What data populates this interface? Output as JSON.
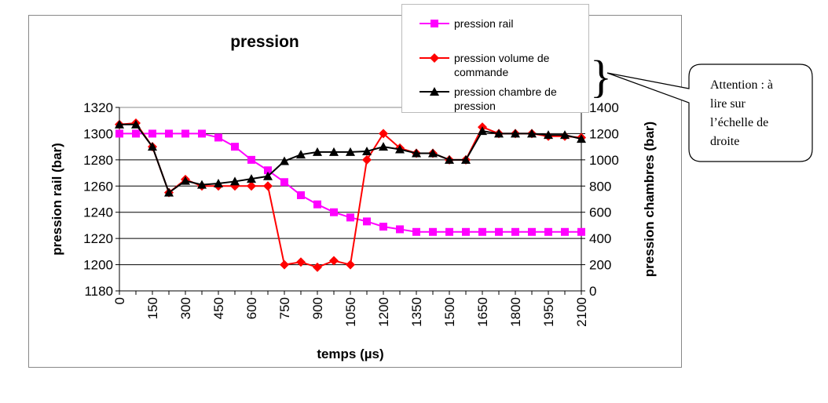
{
  "chart_data": {
    "type": "line",
    "title": "pression",
    "xlabel": "temps (µs)",
    "ylabel_left": "pression rail (bar)",
    "ylabel_right": "pression chambres (bar)",
    "x": [
      0,
      75,
      150,
      225,
      300,
      375,
      450,
      525,
      600,
      675,
      750,
      825,
      900,
      975,
      1050,
      1125,
      1200,
      1275,
      1350,
      1425,
      1500,
      1575,
      1650,
      1725,
      1800,
      1875,
      1950,
      2025,
      2100
    ],
    "xticks": [
      "0",
      "150",
      "300",
      "450",
      "600",
      "750",
      "900",
      "1050",
      "1200",
      "1350",
      "1500",
      "1650",
      "1800",
      "1950",
      "2100"
    ],
    "ylim_left": [
      1180,
      1320
    ],
    "ylim_right": [
      0,
      1400
    ],
    "yticks_left": [
      "1180",
      "1200",
      "1220",
      "1240",
      "1260",
      "1280",
      "1300",
      "1320"
    ],
    "yticks_right": [
      "0",
      "200",
      "400",
      "600",
      "800",
      "1000",
      "1200",
      "1400"
    ],
    "grid": "horizontal",
    "legend_position": "top-right",
    "series": [
      {
        "name": "pression rail",
        "axis": "left",
        "color": "#ff00ff",
        "marker": "square",
        "values": [
          1300,
          1300,
          1300,
          1300,
          1300,
          1300,
          1297,
          1290,
          1280,
          1272,
          1263,
          1253,
          1246,
          1240,
          1236,
          1233,
          1229,
          1227,
          1225,
          1225,
          1225,
          1225,
          1225,
          1225,
          1225,
          1225,
          1225,
          1225,
          1225
        ]
      },
      {
        "name": "pression volume de commande",
        "axis": "right",
        "color": "#ff0000",
        "marker": "diamond",
        "values": [
          1270,
          1280,
          1100,
          750,
          850,
          800,
          800,
          800,
          800,
          800,
          200,
          220,
          180,
          230,
          200,
          1000,
          1200,
          1090,
          1050,
          1050,
          1000,
          1000,
          1250,
          1200,
          1200,
          1200,
          1180,
          1180,
          1170
        ]
      },
      {
        "name": "pression chambre de pression",
        "axis": "right",
        "color": "#000000",
        "marker": "triangle",
        "values": [
          1270,
          1270,
          1100,
          750,
          840,
          810,
          820,
          835,
          855,
          875,
          990,
          1040,
          1060,
          1060,
          1060,
          1065,
          1100,
          1080,
          1050,
          1050,
          1000,
          1000,
          1220,
          1200,
          1200,
          1200,
          1190,
          1190,
          1160
        ]
      }
    ],
    "legend_items": [
      [
        "pression rail"
      ],
      [
        "pression volume de",
        "commande"
      ],
      [
        "pression chambre de",
        "pression"
      ]
    ]
  },
  "annotation": {
    "brace": "}",
    "lines": [
      "Attention : à",
      "lire sur",
      "l’échelle de",
      "droite"
    ]
  }
}
